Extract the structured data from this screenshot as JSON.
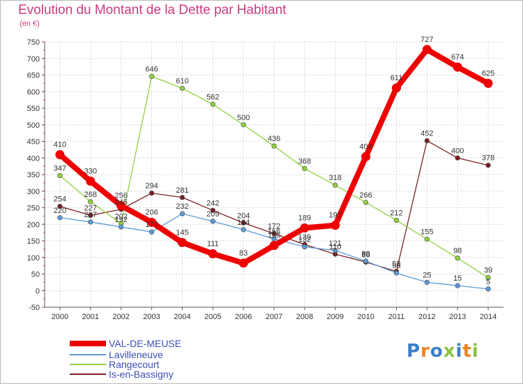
{
  "header": {
    "title": "Evolution du Montant de la Dette par Habitant",
    "subtitle": "(en €)"
  },
  "brand": {
    "letters": [
      "P",
      "r",
      "o",
      "x",
      "i",
      "t",
      "i"
    ],
    "colors": [
      "#3a7fc8",
      "#e8841f",
      "#3a7fc8",
      "#8ac43f",
      "#3a7fc8",
      "#e8841f",
      "#8ac43f"
    ]
  },
  "chart_data": {
    "type": "line",
    "title": "Evolution du Montant de la Dette par Habitant",
    "subtitle": "(en €)",
    "xlabel": "",
    "ylabel": "",
    "x": [
      "2000",
      "2001",
      "2002",
      "2003",
      "2004",
      "2005",
      "2006",
      "2007",
      "2008",
      "2009",
      "2010",
      "2011",
      "2012",
      "2013",
      "2014"
    ],
    "ylim": [
      -50,
      750
    ],
    "yticks": [
      750,
      700,
      650,
      600,
      550,
      500,
      450,
      400,
      350,
      300,
      250,
      200,
      150,
      100,
      50,
      0,
      -50
    ],
    "grid": true,
    "legend_position": "bottom-left",
    "series": [
      {
        "name": "Is-en-Bassigny",
        "color": "#7b1f24",
        "values": [
          254,
          227,
          245,
          294,
          281,
          242,
          204,
          172,
          139,
          110,
          86,
          58,
          452,
          400,
          378
        ],
        "labels": [
          "254",
          "227",
          "245",
          "294",
          "281",
          "242",
          "204",
          "172",
          "139",
          "110",
          "86",
          "58",
          "452",
          "400",
          "378"
        ]
      },
      {
        "name": "Rangecourt",
        "color": "#8fd140",
        "values": [
          347,
          268,
          202,
          646,
          610,
          562,
          500,
          436,
          368,
          318,
          266,
          212,
          155,
          98,
          39
        ],
        "labels": [
          "347",
          "268",
          "202",
          "646",
          "610",
          "562",
          "500",
          "436",
          "368",
          "318",
          "266",
          "212",
          "155",
          "98",
          "39"
        ]
      },
      {
        "name": "Lavilleneuve",
        "color": "#5b9bd5",
        "values": [
          220,
          207,
          192,
          177,
          232,
          209,
          184,
          156,
          132,
          121,
          89,
          53,
          25,
          15,
          5
        ],
        "labels": [
          "220",
          "207",
          "192",
          "177",
          "232",
          "209",
          "184",
          "156",
          "132",
          "121",
          "89",
          "53",
          "25",
          "15",
          "5"
        ]
      },
      {
        "name": "VAL-DE-MEUSE",
        "color": "#ee0000",
        "values": [
          410,
          330,
          256,
          206,
          145,
          111,
          83,
          136,
          189,
          197,
          404,
          611,
          727,
          674,
          625
        ],
        "labels": [
          "410",
          "330",
          "256",
          "206",
          "145",
          "111",
          "83",
          "136",
          "189",
          "197",
          "404",
          "611",
          "727",
          "674",
          "625"
        ]
      }
    ]
  },
  "legend": {
    "items": [
      {
        "label": "VAL-DE-MEUSE",
        "color": "#ee0000",
        "thickness": 8
      },
      {
        "label": "Lavilleneuve",
        "color": "#5b9bd5",
        "thickness": 2
      },
      {
        "label": "Rangecourt",
        "color": "#8fd140",
        "thickness": 2
      },
      {
        "label": "Is-en-Bassigny",
        "color": "#7b1f24",
        "thickness": 2
      }
    ]
  }
}
